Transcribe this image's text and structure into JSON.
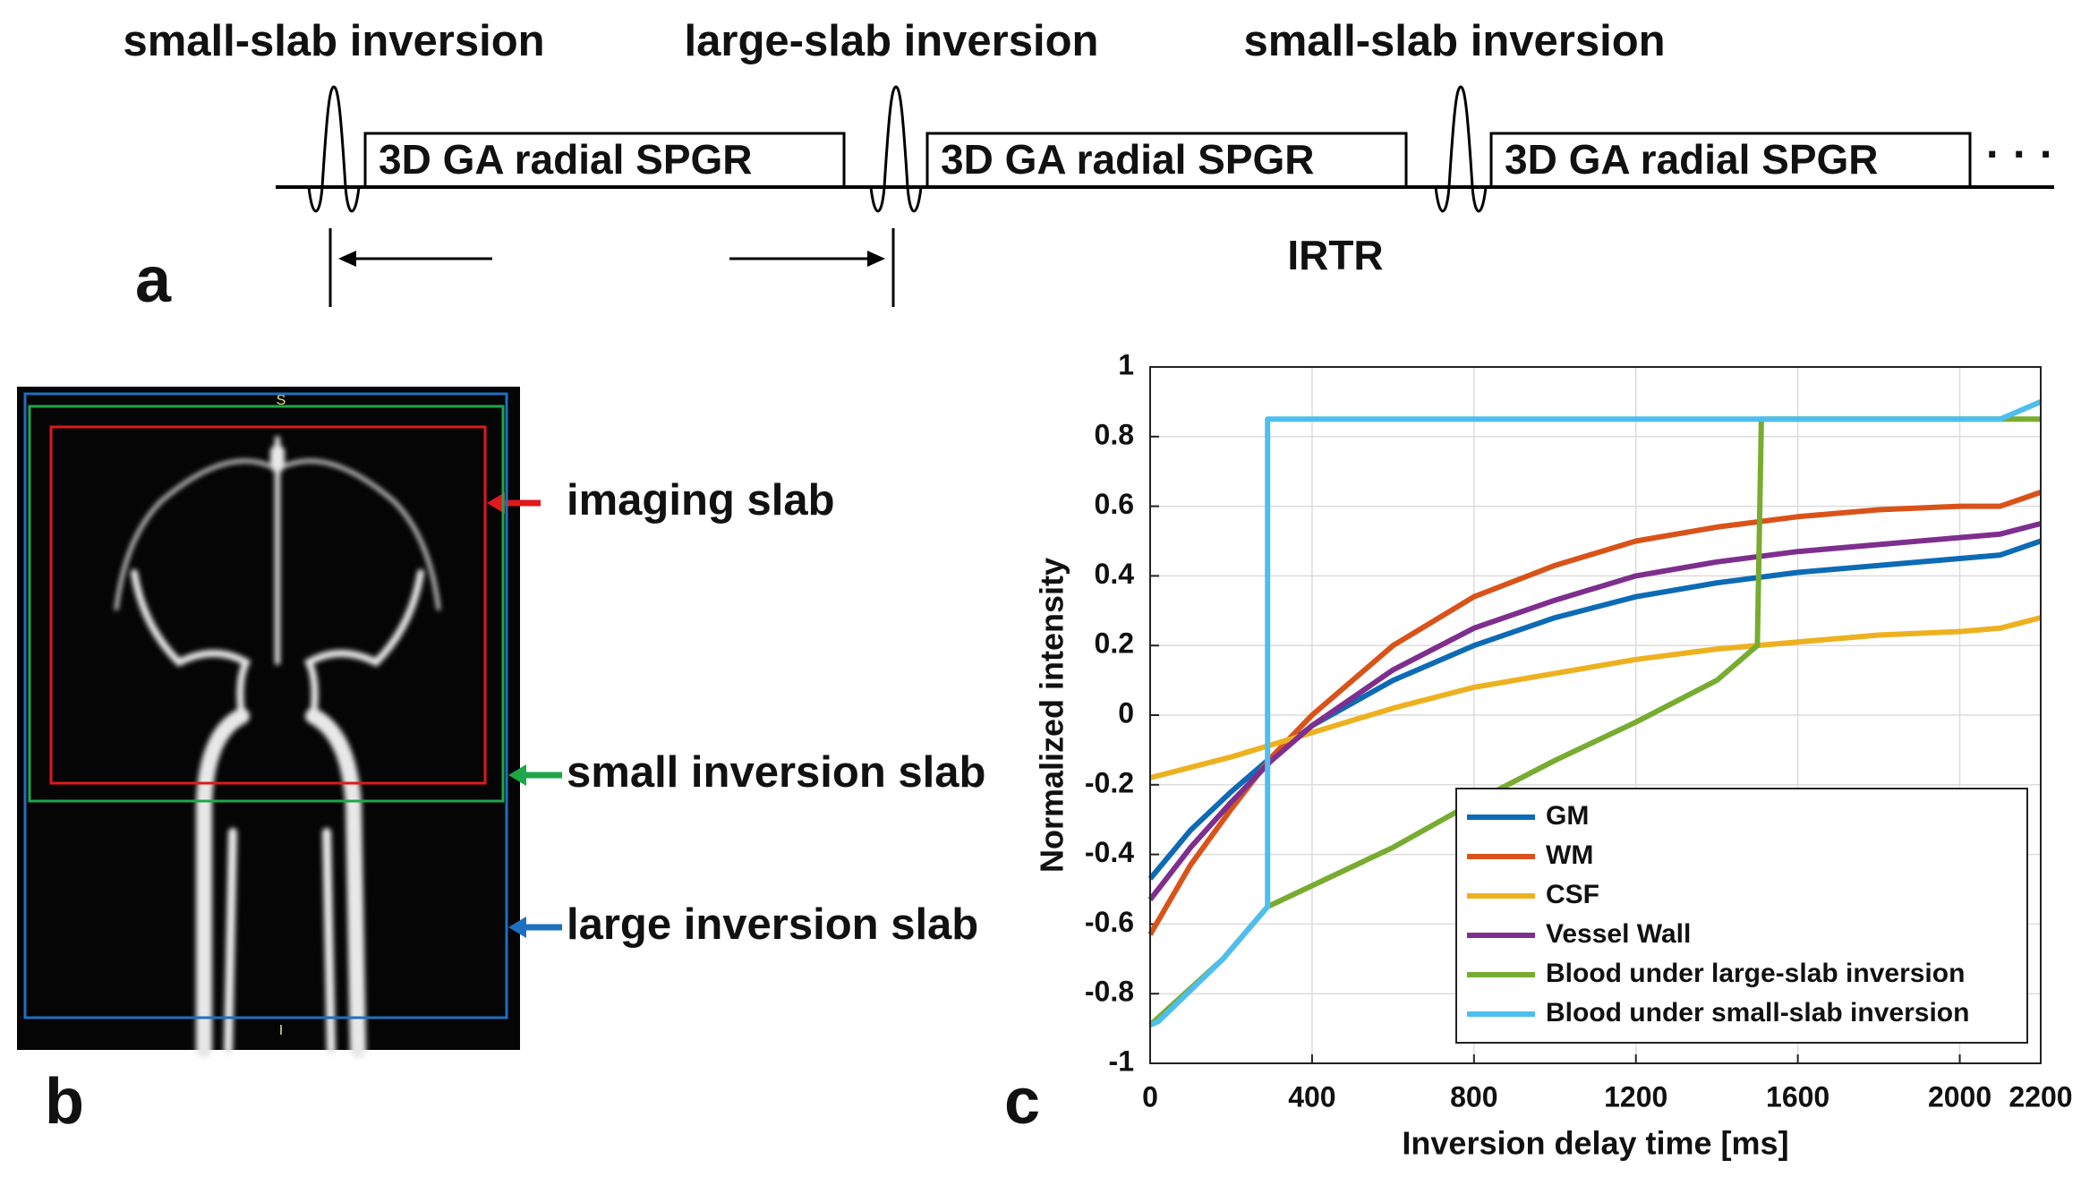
{
  "panel_a": {
    "label": "a",
    "pulses": [
      "small-slab inversion",
      "large-slab inversion",
      "small-slab inversion"
    ],
    "blocks": [
      "3D GA radial SPGR",
      "3D GA radial SPGR",
      "3D GA radial SPGR"
    ],
    "interval": "IRTR",
    "continuation": "· · ·"
  },
  "panel_b": {
    "label": "b",
    "image_markers": [
      "S",
      "I"
    ],
    "slabs": [
      {
        "label": "imaging slab",
        "color": "#e0191c"
      },
      {
        "label": "small inversion slab",
        "color": "#1ea64a"
      },
      {
        "label": "large inversion slab",
        "color": "#1f6fc0"
      }
    ]
  },
  "panel_c": {
    "label": "c"
  },
  "chart_data": {
    "type": "line",
    "xlabel": "Inversion delay time [ms]",
    "ylabel": "Normalized intensity",
    "xlim": [
      0,
      2200
    ],
    "ylim": [
      -1,
      1
    ],
    "xticks": [
      0,
      400,
      800,
      1200,
      1600,
      2000,
      2200
    ],
    "yticks": [
      -1,
      -0.8,
      -0.6,
      -0.4,
      -0.2,
      0,
      0.2,
      0.4,
      0.6,
      0.8,
      1
    ],
    "grid": true,
    "legend": "lower right",
    "series": [
      {
        "name": "GM",
        "color": "#0d6bb5",
        "x": [
          0,
          100,
          200,
          300,
          400,
          600,
          800,
          1000,
          1200,
          1400,
          1600,
          1800,
          2000,
          2100,
          2200
        ],
        "values": [
          -0.47,
          -0.33,
          -0.22,
          -0.12,
          -0.03,
          0.1,
          0.2,
          0.28,
          0.34,
          0.38,
          0.41,
          0.43,
          0.45,
          0.46,
          0.5
        ]
      },
      {
        "name": "WM",
        "color": "#d95319",
        "x": [
          0,
          100,
          200,
          300,
          400,
          600,
          800,
          1000,
          1200,
          1400,
          1600,
          1800,
          2000,
          2100,
          2200
        ],
        "values": [
          -0.63,
          -0.43,
          -0.27,
          -0.12,
          0.0,
          0.2,
          0.34,
          0.43,
          0.5,
          0.54,
          0.57,
          0.59,
          0.6,
          0.6,
          0.64
        ]
      },
      {
        "name": "CSF",
        "color": "#edb120",
        "x": [
          0,
          200,
          400,
          600,
          800,
          1000,
          1200,
          1400,
          1600,
          1800,
          2000,
          2100,
          2200
        ],
        "values": [
          -0.18,
          -0.12,
          -0.05,
          0.02,
          0.08,
          0.12,
          0.16,
          0.19,
          0.21,
          0.23,
          0.24,
          0.25,
          0.28
        ]
      },
      {
        "name": "Vessel Wall",
        "color": "#7e2f8e",
        "x": [
          0,
          100,
          200,
          300,
          400,
          600,
          800,
          1000,
          1200,
          1400,
          1600,
          1800,
          2000,
          2100,
          2200
        ],
        "values": [
          -0.53,
          -0.38,
          -0.25,
          -0.13,
          -0.03,
          0.13,
          0.25,
          0.33,
          0.4,
          0.44,
          0.47,
          0.49,
          0.51,
          0.52,
          0.55
        ]
      },
      {
        "name": "Blood under large-slab inversion",
        "color": "#77ac30",
        "x": [
          0,
          180,
          290,
          600,
          800,
          1000,
          1200,
          1400,
          1500,
          1510,
          2200
        ],
        "values": [
          -0.89,
          -0.7,
          -0.55,
          -0.38,
          -0.25,
          -0.13,
          -0.02,
          0.1,
          0.2,
          0.85,
          0.85
        ]
      },
      {
        "name": "Blood under small-slab inversion",
        "color": "#4dbeee",
        "x": [
          0,
          20,
          180,
          290,
          290,
          2100,
          2200
        ],
        "values": [
          -0.89,
          -0.88,
          -0.7,
          -0.55,
          0.85,
          0.85,
          0.9
        ]
      }
    ]
  }
}
